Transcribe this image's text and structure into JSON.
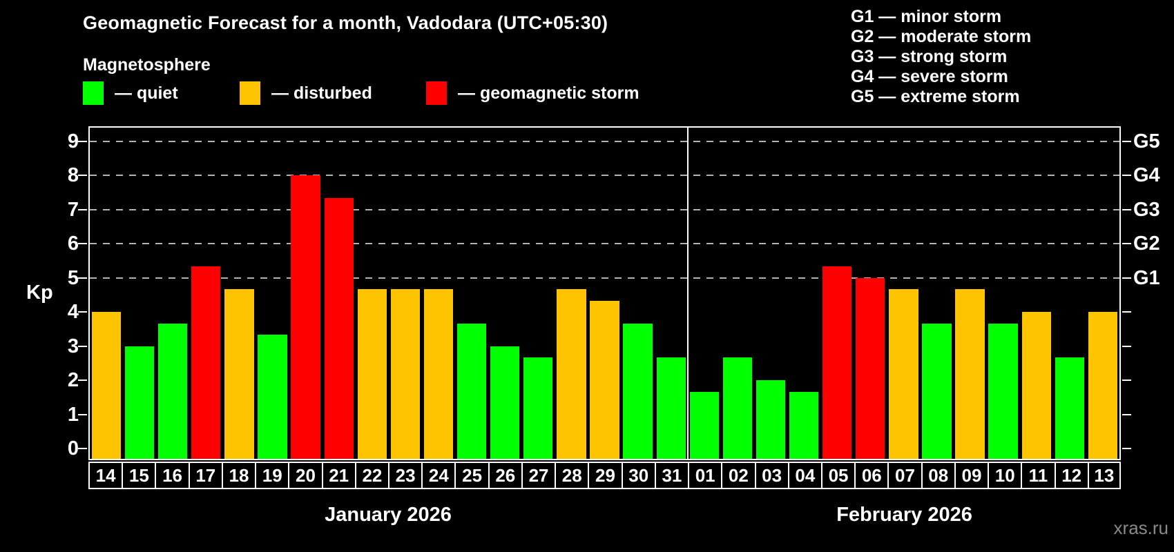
{
  "header": {
    "title": "Geomagnetic Forecast for a month, Vadodara (UTC+05:30)",
    "subtitle": "Magnetosphere"
  },
  "legend": {
    "items": [
      {
        "key": "quiet",
        "label": "— quiet",
        "color": "#00ff00"
      },
      {
        "key": "disturbed",
        "label": "— disturbed",
        "color": "#ffc400"
      },
      {
        "key": "storm",
        "label": "— geomagnetic storm",
        "color": "#ff0000"
      }
    ]
  },
  "g_scale_legend": {
    "lines": [
      "G1 — minor storm",
      "G2 — moderate storm",
      "G3 — strong storm",
      "G4 — severe storm",
      "G5 — extreme storm"
    ]
  },
  "watermark": "xras.ru",
  "chart_data": {
    "type": "bar",
    "title": "Geomagnetic Forecast for a month, Vadodara (UTC+05:30)",
    "subtitle": "Magnetosphere",
    "ylabel": "Kp",
    "ylim": [
      0,
      9
    ],
    "y_ticks": [
      0,
      1,
      2,
      3,
      4,
      5,
      6,
      7,
      8,
      9
    ],
    "gridlines_at": [
      5,
      6,
      7,
      8,
      9
    ],
    "right_axis": [
      {
        "value": 5,
        "label": "G1"
      },
      {
        "value": 6,
        "label": "G2"
      },
      {
        "value": 7,
        "label": "G3"
      },
      {
        "value": 8,
        "label": "G4"
      },
      {
        "value": 9,
        "label": "G5"
      }
    ],
    "status_colors": {
      "quiet": "#00ff00",
      "disturbed": "#ffc400",
      "storm": "#ff0000"
    },
    "months": [
      {
        "label": "January 2026",
        "days": [
          "14",
          "15",
          "16",
          "17",
          "18",
          "19",
          "20",
          "21",
          "22",
          "23",
          "24",
          "25",
          "26",
          "27",
          "28",
          "29",
          "30",
          "31"
        ],
        "values": [
          4.0,
          3.0,
          3.67,
          5.33,
          4.67,
          3.33,
          8.0,
          7.33,
          4.67,
          4.67,
          4.67,
          3.67,
          3.0,
          2.67,
          4.67,
          4.33,
          3.67,
          2.67
        ],
        "statuses": [
          "disturbed",
          "quiet",
          "quiet",
          "storm",
          "disturbed",
          "quiet",
          "storm",
          "storm",
          "disturbed",
          "disturbed",
          "disturbed",
          "quiet",
          "quiet",
          "quiet",
          "disturbed",
          "disturbed",
          "quiet",
          "quiet"
        ]
      },
      {
        "label": "February 2026",
        "days": [
          "01",
          "02",
          "03",
          "04",
          "05",
          "06",
          "07",
          "08",
          "09",
          "10",
          "11",
          "12",
          "13"
        ],
        "values": [
          1.67,
          2.67,
          2.0,
          1.67,
          5.33,
          5.0,
          4.67,
          3.67,
          4.67,
          3.67,
          4.0,
          2.67,
          4.0
        ],
        "statuses": [
          "quiet",
          "quiet",
          "quiet",
          "quiet",
          "storm",
          "storm",
          "disturbed",
          "quiet",
          "disturbed",
          "quiet",
          "disturbed",
          "quiet",
          "disturbed"
        ]
      }
    ]
  }
}
